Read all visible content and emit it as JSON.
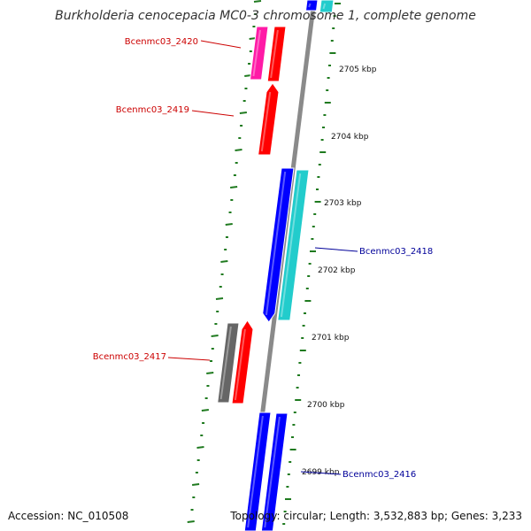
{
  "title": "Burkholderia cenocepacia MC0-3 chromosome 1, complete genome",
  "accession_text": "Accession: NC_010508",
  "summary_text": "Topology: circular; Length: 3,532,883 bp; Genes: 3,233",
  "colors": {
    "forward_label": "#cc0000",
    "reverse_label": "#000099",
    "backbone": "#8a8a8a",
    "gc_ticks": "#1f7a1f",
    "gene_red": "#ff0000",
    "gene_magenta": "#ff1aa6",
    "gene_blue": "#0000ff",
    "gene_cyan": "#22cccc",
    "gene_gray": "#666666"
  },
  "ruler": [
    {
      "label": "2705 kbp"
    },
    {
      "label": "2704 kbp"
    },
    {
      "label": "2703 kbp"
    },
    {
      "label": "2702 kbp"
    },
    {
      "label": "2701 kbp"
    },
    {
      "label": "2700 kbp"
    },
    {
      "label": "2699 kbp"
    }
  ],
  "gene_labels": [
    {
      "text": "Bcenmc03_2420",
      "strand": "forward"
    },
    {
      "text": "Bcenmc03_2419",
      "strand": "forward"
    },
    {
      "text": "Bcenmc03_2418",
      "strand": "reverse"
    },
    {
      "text": "Bcenmc03_2417",
      "strand": "forward"
    },
    {
      "text": "Bcenmc03_2416",
      "strand": "reverse"
    }
  ]
}
